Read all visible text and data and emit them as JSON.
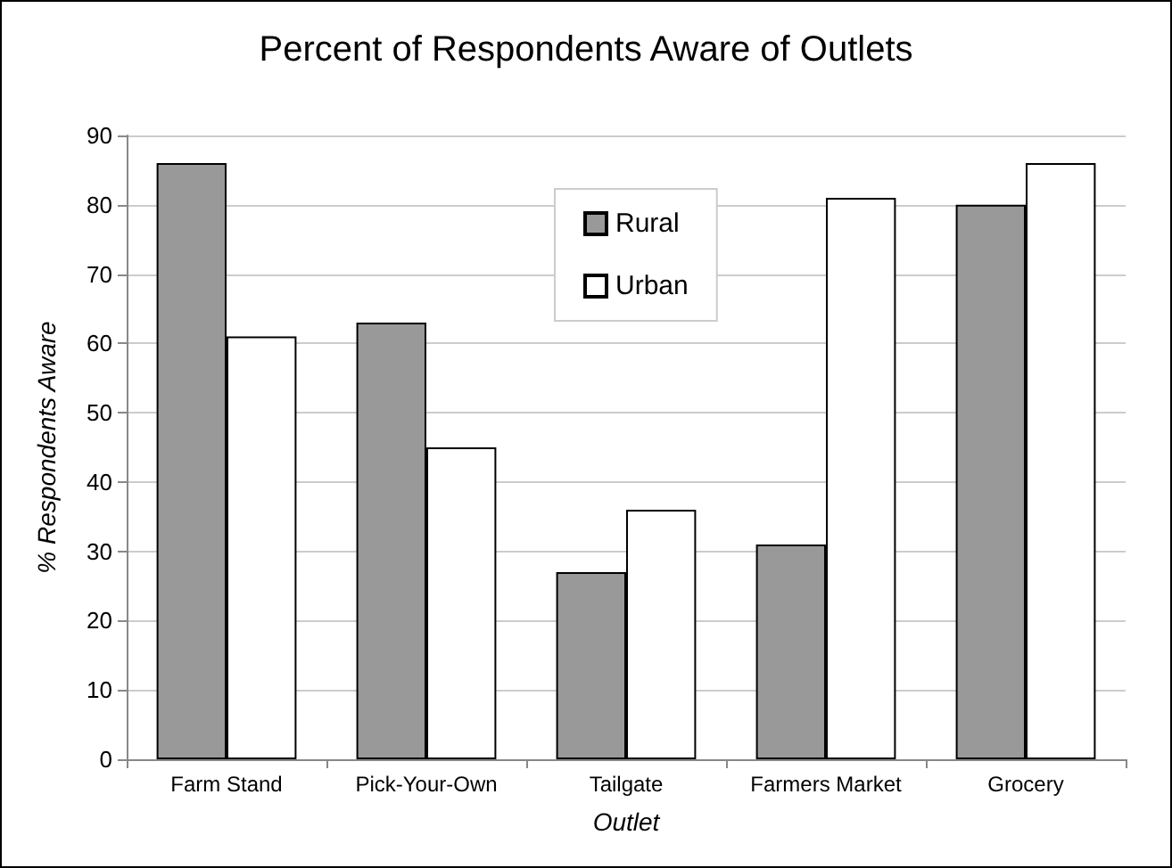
{
  "chart_data": {
    "type": "bar",
    "title": "Percent of Respondents Aware of Outlets",
    "xlabel": "Outlet",
    "ylabel": "% Respondents Aware",
    "categories": [
      "Farm Stand",
      "Pick-Your-Own",
      "Tailgate",
      "Farmers Market",
      "Grocery"
    ],
    "series": [
      {
        "name": "Rural",
        "color": "#999999",
        "values": [
          86,
          63,
          27,
          31,
          80
        ]
      },
      {
        "name": "Urban",
        "color": "#ffffff",
        "values": [
          61,
          45,
          36,
          81,
          86
        ]
      }
    ],
    "ylim": [
      0,
      90
    ],
    "yticks": [
      0,
      10,
      20,
      30,
      40,
      50,
      60,
      70,
      80,
      90
    ],
    "grid": "y",
    "legend": "top"
  }
}
